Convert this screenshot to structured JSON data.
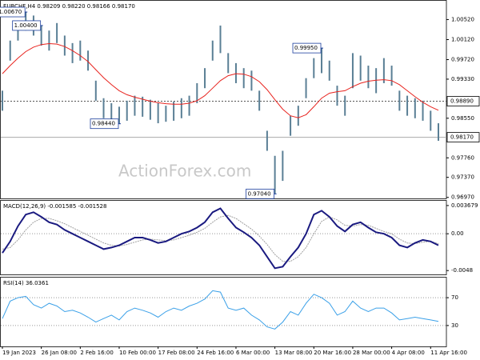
{
  "chart_data": [
    {
      "type": "ohlc",
      "title": "EURCHF,H4  0.98209 0.98220 0.98166 0.98170",
      "watermark": "ActionForex.com",
      "color": "#5a7f95",
      "high": [
        0.991,
        1.001,
        1.005,
        1.0067,
        1.006,
        1.004,
        1.003,
        1.0045,
        1.002,
        1.0005,
        1.001,
        0.999,
        0.993,
        0.9895,
        0.9885,
        0.9878,
        0.989,
        0.99,
        0.9898,
        0.9892,
        0.9885,
        0.988,
        0.9888,
        0.9895,
        0.99,
        0.9925,
        0.9955,
        1.001,
        1.004,
        0.9985,
        0.9965,
        0.9955,
        0.995,
        0.991,
        0.983,
        0.978,
        0.979,
        0.986,
        0.988,
        0.9935,
        0.9975,
        0.9995,
        0.997,
        0.992,
        0.99,
        0.9985,
        0.998,
        0.996,
        0.9955,
        0.9975,
        0.996,
        0.991,
        0.99,
        0.9895,
        0.989,
        0.987,
        0.9845
      ],
      "low": [
        0.987,
        0.997,
        1.001,
        1.003,
        1.002,
        1.0,
        0.999,
        1.0005,
        0.998,
        0.9965,
        0.997,
        0.995,
        0.989,
        0.9855,
        0.9848,
        0.9844,
        0.985,
        0.986,
        0.9858,
        0.9852,
        0.9845,
        0.9848,
        0.985,
        0.9855,
        0.986,
        0.9885,
        0.9915,
        0.997,
        0.9985,
        0.9945,
        0.9925,
        0.9915,
        0.991,
        0.987,
        0.979,
        0.9704,
        0.973,
        0.982,
        0.984,
        0.9895,
        0.9935,
        0.9945,
        0.993,
        0.988,
        0.986,
        0.9915,
        0.993,
        0.9915,
        0.9905,
        0.9925,
        0.992,
        0.987,
        0.986,
        0.9855,
        0.985,
        0.983,
        0.981
      ],
      "overlay": {
        "color": "#e8231e",
        "values": [
          0.9944,
          0.996,
          0.9975,
          0.9988,
          0.9997,
          1.0002,
          1.0004,
          1.0003,
          0.9998,
          0.999,
          0.998,
          0.9968,
          0.9952,
          0.9936,
          0.9922,
          0.991,
          0.9902,
          0.9897,
          0.9893,
          0.9889,
          0.9886,
          0.9884,
          0.9883,
          0.9883,
          0.9885,
          0.989,
          0.99,
          0.9915,
          0.993,
          0.994,
          0.9944,
          0.9943,
          0.9938,
          0.9928,
          0.9912,
          0.9892,
          0.9873,
          0.986,
          0.9856,
          0.9862,
          0.9878,
          0.9895,
          0.9905,
          0.9908,
          0.991,
          0.9918,
          0.9925,
          0.9929,
          0.9931,
          0.9932,
          0.993,
          0.9922,
          0.991,
          0.9898,
          0.9887,
          0.9878,
          0.9871
        ]
      },
      "ylim": [
        0.9695,
        1.0091
      ],
      "yticks": [
        {
          "value": 1.0052,
          "label": "1.00520"
        },
        {
          "value": 1.0012,
          "label": "1.00120"
        },
        {
          "value": 0.9972,
          "label": "0.99720"
        },
        {
          "value": 0.9933,
          "label": "0.99330"
        },
        {
          "value": 0.9855,
          "label": "0.98550"
        },
        {
          "value": 0.9776,
          "label": "0.97760"
        },
        {
          "value": 0.9737,
          "label": "0.97370"
        },
        {
          "value": 0.9697,
          "label": "0.96970"
        }
      ],
      "annotations": [
        {
          "value": 1.0067,
          "label": "1.00670"
        },
        {
          "value": 0.9844,
          "label": "0.98440"
        },
        {
          "value": 1.004,
          "label": "1.00400"
        },
        {
          "value": 0.9995,
          "label": "0.99950"
        },
        {
          "value": 0.9704,
          "label": "0.97040"
        }
      ],
      "hlines": [
        {
          "value": 0.9889,
          "label": "0.98890",
          "style": "dotted"
        },
        {
          "value": 0.9817,
          "label": "0.98170",
          "style": "solid"
        }
      ]
    },
    {
      "type": "macd",
      "title": "MACD(12,26,9) -0.001585 -0.001528",
      "macd": {
        "color": "#1a1a80",
        "values": [
          -0.0025,
          -0.001,
          0.001,
          0.0025,
          0.0028,
          0.0022,
          0.0015,
          0.0012,
          0.0005,
          0.0,
          -0.0005,
          -0.001,
          -0.0015,
          -0.002,
          -0.0018,
          -0.0015,
          -0.001,
          -0.0005,
          -0.0005,
          -0.0008,
          -0.0012,
          -0.001,
          -0.0005,
          0.0,
          0.0003,
          0.0008,
          0.0015,
          0.0028,
          0.0033,
          0.002,
          0.0008,
          0.0002,
          -0.0005,
          -0.0015,
          -0.003,
          -0.0045,
          -0.0043,
          -0.003,
          -0.0018,
          0.0,
          0.0025,
          0.003,
          0.0022,
          0.001,
          0.0003,
          0.0012,
          0.0015,
          0.0008,
          0.0002,
          0.0,
          -0.0005,
          -0.0015,
          -0.0018,
          -0.0012,
          -0.0008,
          -0.001,
          -0.0015
        ]
      },
      "signal": {
        "color": "#a0a0a0",
        "values": [
          -0.002,
          -0.0018,
          -0.0008,
          0.0005,
          0.0015,
          0.002,
          0.002,
          0.0017,
          0.0013,
          0.0008,
          0.0003,
          -0.0002,
          -0.0007,
          -0.0012,
          -0.0015,
          -0.0016,
          -0.0014,
          -0.0011,
          -0.0008,
          -0.0007,
          -0.0008,
          -0.0009,
          -0.0008,
          -0.0005,
          -0.0002,
          0.0002,
          0.0007,
          0.0015,
          0.0022,
          0.0024,
          0.002,
          0.0013,
          0.0006,
          -0.0003,
          -0.0014,
          -0.0027,
          -0.0036,
          -0.0036,
          -0.003,
          -0.0018,
          0.0,
          0.0016,
          0.0022,
          0.0018,
          0.0011,
          0.001,
          0.0012,
          0.0011,
          0.0007,
          0.0003,
          0.0,
          -0.0007,
          -0.0012,
          -0.0013,
          -0.0011,
          -0.001,
          -0.0013
        ]
      },
      "ylim": [
        -0.0053,
        0.0044
      ],
      "yticks": [
        0.003679,
        {
          "value": 0,
          "label": "0.00"
        },
        -0.0048
      ],
      "levels": [
        0
      ]
    },
    {
      "type": "rsi",
      "title": "RSI(14) 36.0361",
      "color": "#3aa0e8",
      "values": [
        40,
        65,
        70,
        72,
        60,
        55,
        62,
        58,
        50,
        52,
        48,
        42,
        35,
        40,
        45,
        38,
        50,
        55,
        52,
        48,
        42,
        50,
        55,
        52,
        58,
        62,
        68,
        80,
        78,
        55,
        52,
        55,
        45,
        38,
        28,
        25,
        35,
        50,
        45,
        62,
        75,
        70,
        62,
        45,
        50,
        65,
        55,
        50,
        55,
        55,
        48,
        38,
        40,
        42,
        40,
        38,
        36
      ],
      "ylim": [
        0,
        100
      ],
      "yticks": [
        70,
        30
      ],
      "levels": [
        70,
        30
      ],
      "xticks": [
        {
          "value": 0,
          "label": "19 Jan 2023"
        },
        {
          "value": 5,
          "label": "26 Jan 08:00"
        },
        {
          "value": 10,
          "label": "2 Feb 16:00"
        },
        {
          "value": 15,
          "label": "10 Feb 00:00"
        },
        {
          "value": 20,
          "label": "17 Feb 08:00"
        },
        {
          "value": 25,
          "label": "24 Feb 16:00"
        },
        {
          "value": 30,
          "label": "6 Mar 00:00"
        },
        {
          "value": 35,
          "label": "13 Mar 08:00"
        },
        {
          "value": 40,
          "label": "20 Mar 16:00"
        },
        {
          "value": 45,
          "label": "28 Mar 00:00"
        },
        {
          "value": 50,
          "label": "4 Apr 08:00"
        },
        {
          "value": 55,
          "label": "11 Apr 16:00"
        }
      ]
    }
  ]
}
